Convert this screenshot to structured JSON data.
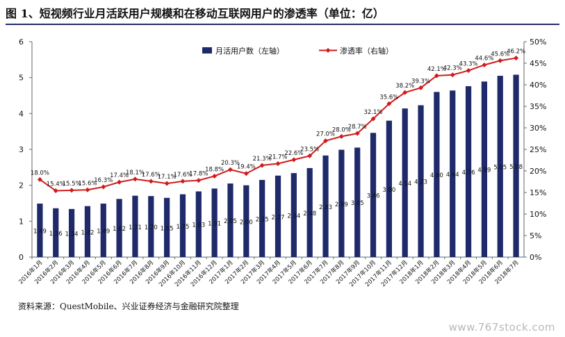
{
  "title": "图 1、短视频行业月活跃用户规模和在移动互联网用户的渗透率（单位：亿）",
  "source": "资料来源：QuestMobile、兴业证券经济与金融研究院整理",
  "watermark": "www.767stock.com",
  "chart_data": {
    "type": "bar+line",
    "categories": [
      "2016年1月",
      "2016年2月",
      "2016年3月",
      "2016年4月",
      "2016年5月",
      "2016年6月",
      "2016年7月",
      "2016年8月",
      "2016年9月",
      "2016年10月",
      "2016年11月",
      "2016年12月",
      "2017年1月",
      "2017年2月",
      "2017年3月",
      "2017年4月",
      "2017年5月",
      "2017年6月",
      "2017年7月",
      "2017年8月",
      "2017年9月",
      "2017年10月",
      "2017年11月",
      "2017年12月",
      "2018年1月",
      "2018年2月",
      "2018年3月",
      "2018年4月",
      "2018年5月",
      "2018年6月",
      "2018年7月"
    ],
    "series": [
      {
        "name": "月活用户数（左轴）",
        "type": "bar",
        "axis": "left",
        "color": "#1f2a6b",
        "values": [
          1.49,
          1.36,
          1.34,
          1.42,
          1.49,
          1.62,
          1.71,
          1.7,
          1.65,
          1.75,
          1.83,
          1.91,
          2.05,
          2.0,
          2.15,
          2.27,
          2.34,
          2.48,
          2.83,
          2.99,
          3.05,
          3.46,
          3.8,
          4.14,
          4.23,
          4.6,
          4.64,
          4.76,
          4.89,
          5.05,
          5.08
        ],
        "labels": [
          "1.49",
          "1.36",
          "1.34",
          "1.42",
          "1.49",
          "1.62",
          "1.71",
          "1.70",
          "1.65",
          "1.75",
          "1.83",
          "1.91",
          "2.05",
          "2.00",
          "2.15",
          "2.27",
          "2.34",
          "2.48",
          "2.83",
          "2.99",
          "3.05",
          "3.46",
          "3.80",
          "4.14",
          "4.23",
          "4.60",
          "4.64",
          "4.76",
          "4.89",
          "5.05",
          "5.08"
        ]
      },
      {
        "name": "渗透率（右轴）",
        "type": "line",
        "axis": "right",
        "color": "#d11a1a",
        "values": [
          18.0,
          15.4,
          15.5,
          15.6,
          16.3,
          17.4,
          18.1,
          17.6,
          17.1,
          17.6,
          17.8,
          18.8,
          20.3,
          19.4,
          21.3,
          21.7,
          22.6,
          23.5,
          27.0,
          28.0,
          28.7,
          32.1,
          35.6,
          38.2,
          39.3,
          42.1,
          42.3,
          43.3,
          44.6,
          45.6,
          46.2
        ],
        "labels": [
          "18.0%",
          "15.4%",
          "15.5%",
          "15.6%",
          "16.3%",
          "17.4%",
          "18.1%",
          "17.6%",
          "17.1%",
          "17.6%",
          "17.8%",
          "18.8%",
          "20.3%",
          "19.4%",
          "21.3%",
          "21.7%",
          "22.6%",
          "23.5%",
          "27.0%",
          "28.0%",
          "28.7%",
          "32.1%",
          "35.6%",
          "38.2%",
          "39.3%",
          "42.1%",
          "42.3%",
          "43.3%",
          "44.6%",
          "45.6%",
          "46.2%"
        ]
      }
    ],
    "yleft": {
      "min": 0,
      "max": 6,
      "ticks": [
        "0",
        "1",
        "2",
        "3",
        "4",
        "5",
        "6"
      ]
    },
    "yright": {
      "min": 0,
      "max": 50,
      "ticks": [
        "0%",
        "5%",
        "10%",
        "15%",
        "20%",
        "25%",
        "30%",
        "35%",
        "40%",
        "45%",
        "50%"
      ]
    },
    "legend_position": "top-center",
    "grid": false
  }
}
